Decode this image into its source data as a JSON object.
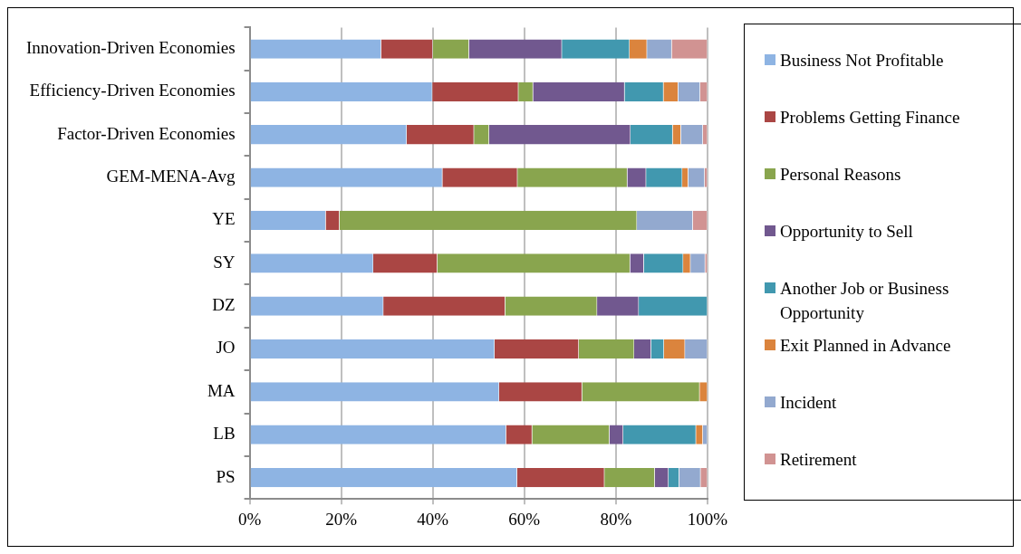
{
  "chart_data": {
    "type": "bar",
    "orientation": "horizontal",
    "stacked": true,
    "categories": [
      "Innovation-Driven Economies",
      "Efficiency-Driven Economies",
      "Factor-Driven Economies",
      "GEM-MENA-Avg",
      "YE",
      "SY",
      "DZ",
      "JO",
      "MA",
      "LB",
      "PS"
    ],
    "series": [
      {
        "name": "Business Not Profitable",
        "color": "#8eb4e3",
        "values": [
          28.7,
          39.9,
          34.3,
          42.1,
          16.6,
          27.0,
          29.2,
          53.5,
          54.5,
          56.0,
          58.4
        ]
      },
      {
        "name": "Problems Getting Finance",
        "color": "#aa4644",
        "values": [
          11.3,
          18.8,
          14.7,
          16.4,
          3.0,
          14.0,
          26.6,
          18.4,
          18.1,
          5.7,
          19.1
        ]
      },
      {
        "name": "Personal Reasons",
        "color": "#89a54e",
        "values": [
          7.9,
          3.2,
          3.3,
          24.0,
          65.0,
          42.1,
          20.1,
          12.1,
          25.7,
          16.9,
          11.0
        ]
      },
      {
        "name": "Opportunity to Sell",
        "color": "#71588f",
        "values": [
          20.3,
          20.0,
          30.9,
          4.1,
          0,
          3.0,
          9.1,
          3.7,
          0,
          3.0,
          3.0
        ]
      },
      {
        "name": "Another Job or Business Opportunity",
        "color": "#4198af",
        "values": [
          14.8,
          8.5,
          9.2,
          7.9,
          0,
          8.6,
          15.0,
          2.8,
          0,
          15.9,
          2.3
        ]
      },
      {
        "name": "Exit Planned in Advance",
        "color": "#db843d",
        "values": [
          3.8,
          3.2,
          1.8,
          1.3,
          0,
          1.6,
          0,
          4.6,
          1.7,
          1.5,
          0
        ]
      },
      {
        "name": "Incident",
        "color": "#93a9cf",
        "values": [
          5.4,
          4.8,
          4.8,
          3.6,
          12.2,
          3.2,
          0,
          4.9,
          0,
          1.0,
          4.7
        ]
      },
      {
        "name": "Retirement",
        "color": "#d19392",
        "values": [
          7.8,
          1.6,
          1.0,
          0.6,
          3.2,
          0.5,
          0,
          0,
          0,
          0,
          1.5
        ]
      }
    ],
    "xlim": [
      0,
      100
    ],
    "xticks": [
      {
        "value": 0,
        "label": "0%"
      },
      {
        "value": 20,
        "label": "20%"
      },
      {
        "value": 40,
        "label": "40%"
      },
      {
        "value": 60,
        "label": "60%"
      },
      {
        "value": 80,
        "label": "80%"
      },
      {
        "value": 100,
        "label": "100%"
      }
    ],
    "grid": "x",
    "legend": "right"
  }
}
